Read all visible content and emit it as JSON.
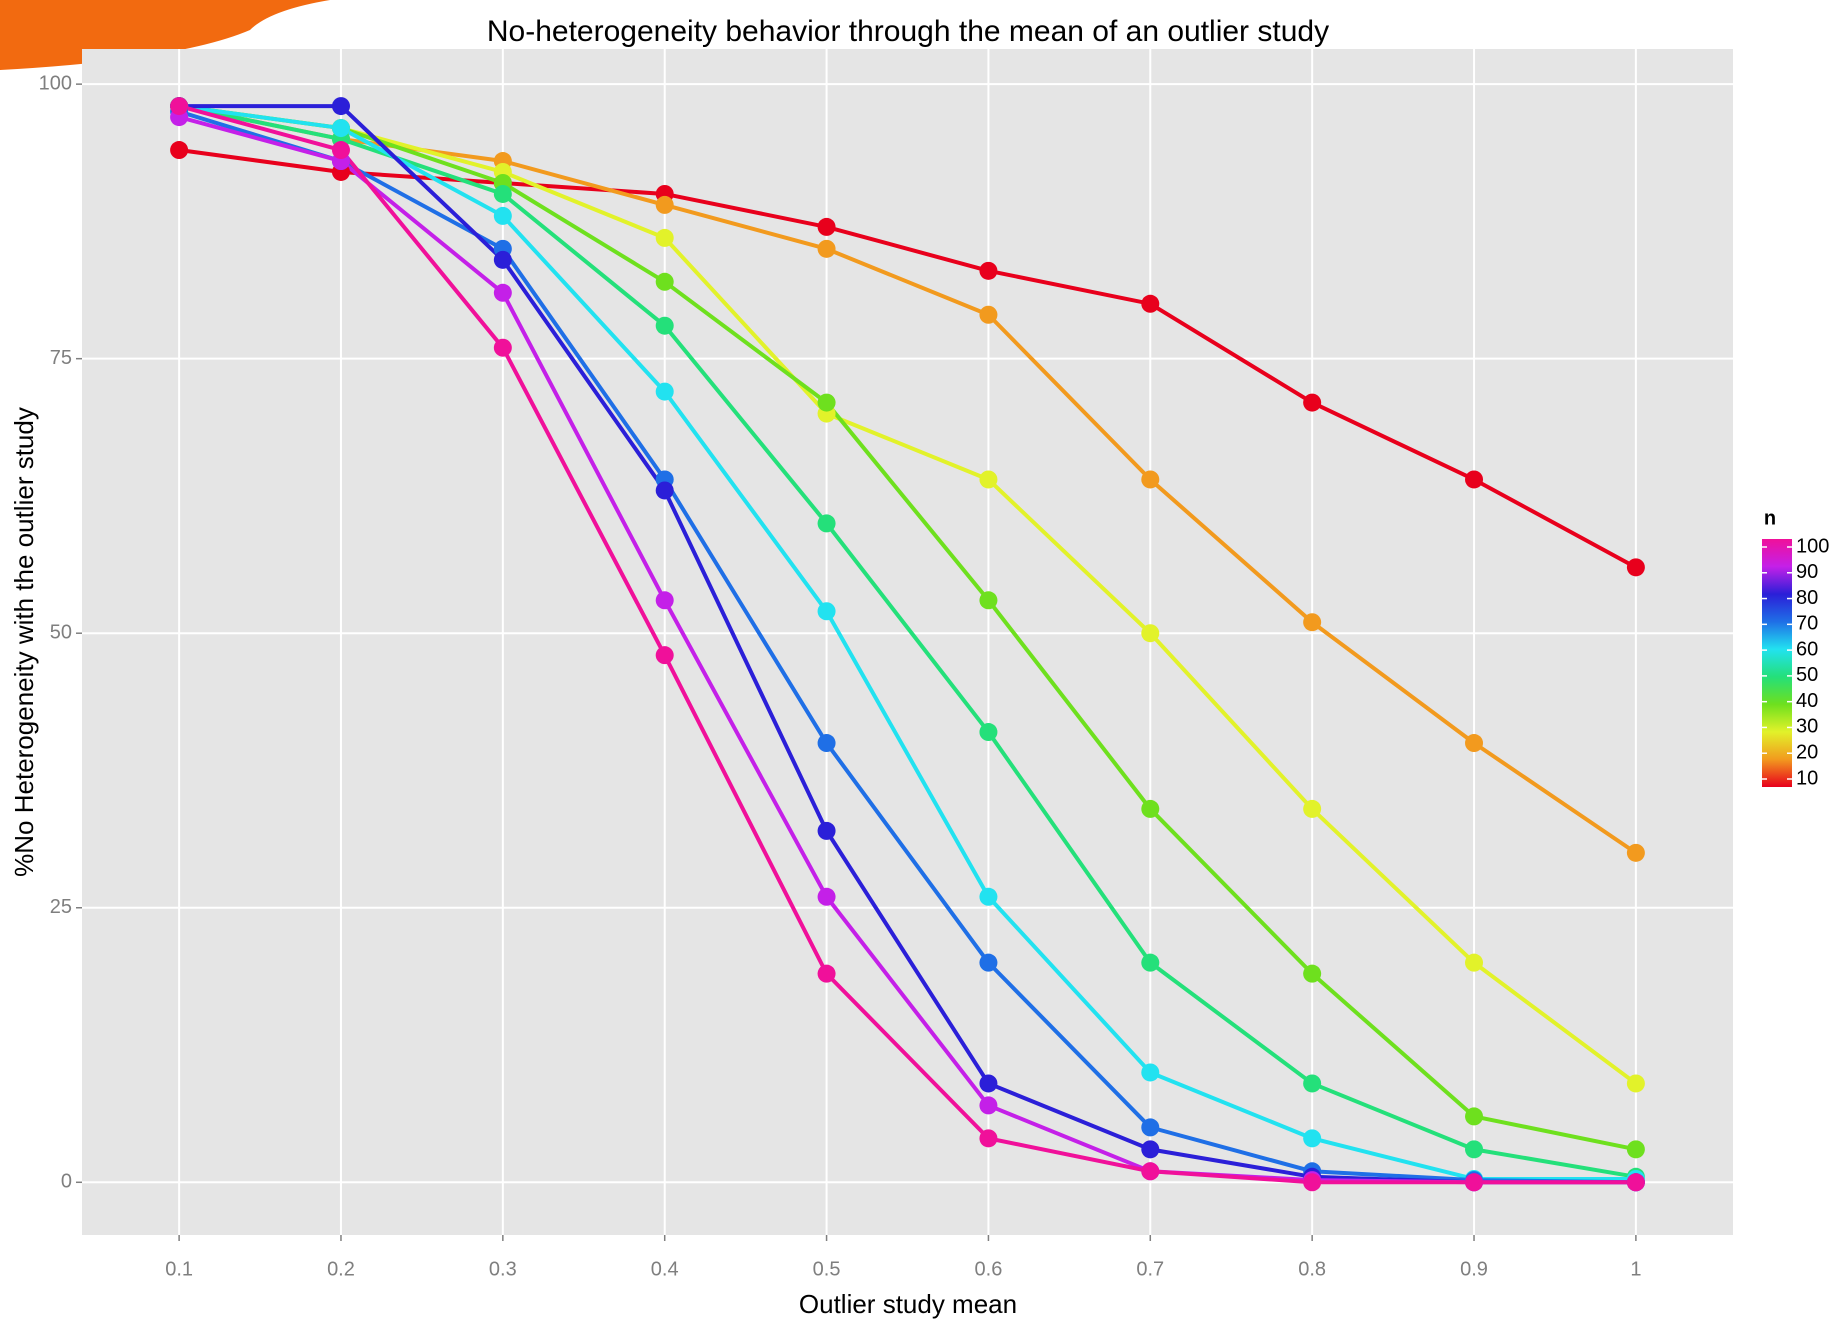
{
  "chart_data": {
    "type": "line",
    "title": "No-heterogeneity behavior through the mean of an outlier study",
    "x_label": "Outlier study mean",
    "y_label": "%No Heterogeneity with the outlier study",
    "legend_title": "n",
    "x": [
      0.1,
      0.2,
      0.3,
      0.4,
      0.5,
      0.6,
      0.7,
      0.8,
      0.9,
      1
    ],
    "xlim": [
      0.04,
      1.06
    ],
    "xticks": [
      0.1,
      0.2,
      0.3,
      0.4,
      0.5,
      0.6,
      0.7,
      0.8,
      0.9,
      1
    ],
    "ylim": [
      -4.8,
      103.2
    ],
    "yticks": [
      0,
      25,
      50,
      75,
      100
    ],
    "grid": true,
    "legend_position": "right",
    "series": [
      {
        "name": "10",
        "color": "#e8001c",
        "values": [
          94,
          92,
          91,
          90,
          87,
          83,
          80,
          71,
          64,
          56
        ]
      },
      {
        "name": "20",
        "color": "#f29a1e",
        "values": [
          98,
          95,
          93,
          89,
          85,
          79,
          64,
          51,
          40,
          30
        ]
      },
      {
        "name": "30",
        "color": "#e2f22a",
        "values": [
          98,
          96,
          92,
          86,
          70,
          64,
          50,
          34,
          20,
          9
        ]
      },
      {
        "name": "40",
        "color": "#6ee01e",
        "values": [
          98,
          96,
          91,
          82,
          71,
          53,
          34,
          19,
          6,
          3
        ]
      },
      {
        "name": "50",
        "color": "#24e07a",
        "values": [
          98,
          95,
          90,
          78,
          60,
          41,
          20,
          9,
          3,
          0.5
        ]
      },
      {
        "name": "60",
        "color": "#22e2f0",
        "values": [
          98,
          96,
          88,
          72,
          52,
          26,
          10,
          4,
          0.3,
          0.3
        ]
      },
      {
        "name": "70",
        "color": "#1f6fe6",
        "values": [
          97.5,
          93,
          85,
          64,
          40,
          20,
          5,
          1,
          0.2,
          0
        ]
      },
      {
        "name": "80",
        "color": "#2b1fd8",
        "values": [
          98,
          98,
          84,
          63,
          32,
          9,
          3,
          0.5,
          0,
          0
        ]
      },
      {
        "name": "90",
        "color": "#c420e8",
        "values": [
          97,
          93,
          81,
          53,
          26,
          7,
          1,
          0.2,
          0,
          0
        ]
      },
      {
        "name": "100",
        "color": "#f0109a",
        "values": [
          98,
          94,
          76,
          48,
          19,
          4,
          1,
          0,
          0,
          0
        ]
      }
    ]
  }
}
